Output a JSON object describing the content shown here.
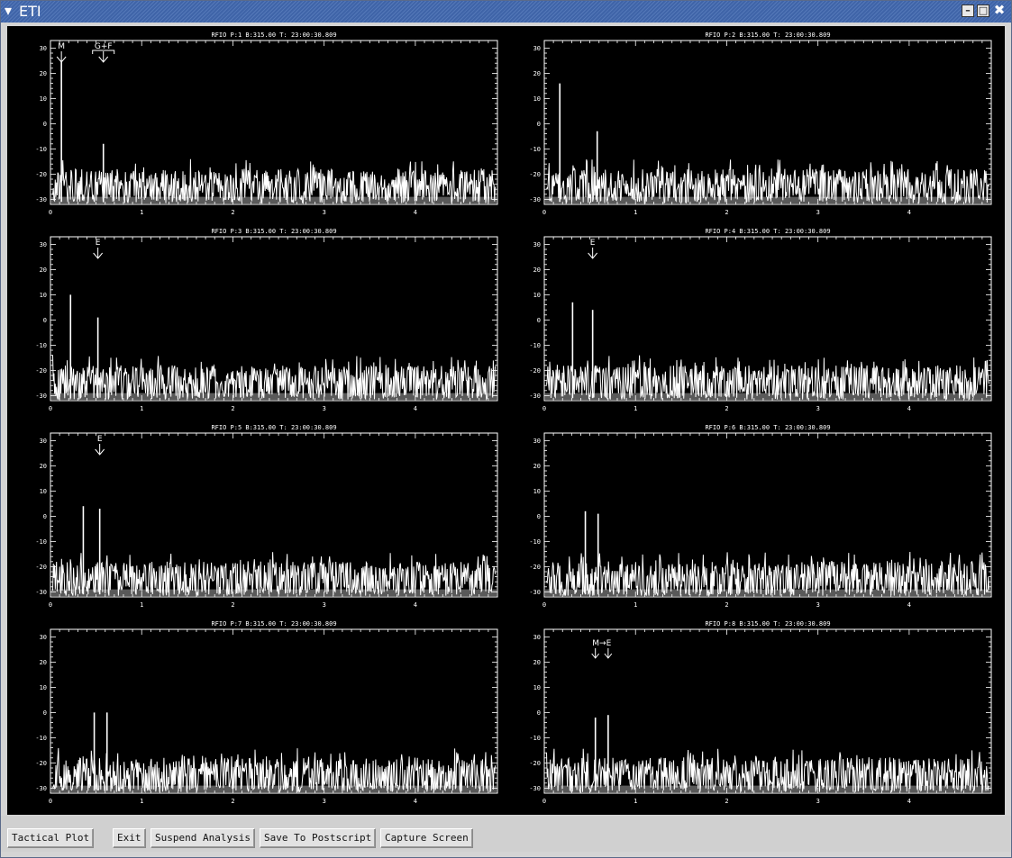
{
  "window": {
    "title": "ETI"
  },
  "buttons": [
    "Tactical Plot",
    "Exit",
    "Suspend Analysis",
    "Save To Postscript",
    "Capture Screen"
  ],
  "colors": {
    "plot_bg": "#000000",
    "trace": "#ffffff",
    "titlebar": "#4a6fb0"
  },
  "chart_data": [
    {
      "type": "line",
      "title": "RFIO P:1 B:315.00 T: 23:00:30.809",
      "xlim": [
        0,
        4.9
      ],
      "ylim": [
        -32,
        33
      ],
      "xticks": [
        "0",
        "1",
        "2",
        "3",
        "4"
      ],
      "yticks": [
        "30",
        "20",
        "10",
        "0",
        "-10",
        "-20",
        "-30"
      ],
      "noise_floor": -22,
      "peaks": [
        {
          "x": 0.12,
          "y": 25
        },
        {
          "x": 0.58,
          "y": -8
        }
      ],
      "markers": [
        {
          "label": "M",
          "x": 0.12
        },
        {
          "label": "G+F",
          "x": 0.58,
          "bracket": true
        }
      ]
    },
    {
      "type": "line",
      "title": "RFIO P:2 B:315.00 T: 23:00:30.809",
      "xlim": [
        0,
        4.9
      ],
      "ylim": [
        -32,
        33
      ],
      "xticks": [
        "0",
        "1",
        "2",
        "3",
        "4"
      ],
      "yticks": [
        "30",
        "20",
        "10",
        "0",
        "-10",
        "-20",
        "-30"
      ],
      "noise_floor": -22,
      "peaks": [
        {
          "x": 0.17,
          "y": 16
        },
        {
          "x": 0.58,
          "y": -3
        }
      ],
      "markers": []
    },
    {
      "type": "line",
      "title": "RFIO P:3 B:315.00 T: 23:00:30.809",
      "xlim": [
        0,
        4.9
      ],
      "ylim": [
        -32,
        33
      ],
      "xticks": [
        "0",
        "1",
        "2",
        "3",
        "4"
      ],
      "yticks": [
        "30",
        "20",
        "10",
        "0",
        "-10",
        "-20",
        "-30"
      ],
      "noise_floor": -22,
      "peaks": [
        {
          "x": 0.22,
          "y": 10
        },
        {
          "x": 0.52,
          "y": 1
        }
      ],
      "markers": [
        {
          "label": "E",
          "x": 0.52
        }
      ]
    },
    {
      "type": "line",
      "title": "RFIO P:4 B:315.00 T: 23:00:30.809",
      "xlim": [
        0,
        4.9
      ],
      "ylim": [
        -32,
        33
      ],
      "xticks": [
        "0",
        "1",
        "2",
        "3",
        "4"
      ],
      "yticks": [
        "30",
        "20",
        "10",
        "0",
        "-10",
        "-20",
        "-30"
      ],
      "noise_floor": -22,
      "peaks": [
        {
          "x": 0.31,
          "y": 7
        },
        {
          "x": 0.53,
          "y": 4
        }
      ],
      "markers": [
        {
          "label": "E",
          "x": 0.53
        }
      ]
    },
    {
      "type": "line",
      "title": "RFIO P:5 B:315.00 T: 23:00:30.809",
      "xlim": [
        0,
        4.9
      ],
      "ylim": [
        -32,
        33
      ],
      "xticks": [
        "0",
        "1",
        "2",
        "3",
        "4"
      ],
      "yticks": [
        "30",
        "20",
        "10",
        "0",
        "-10",
        "-20",
        "-30"
      ],
      "noise_floor": -22,
      "peaks": [
        {
          "x": 0.36,
          "y": 4
        },
        {
          "x": 0.54,
          "y": 3
        }
      ],
      "markers": [
        {
          "label": "E",
          "x": 0.54
        }
      ]
    },
    {
      "type": "line",
      "title": "RFIO P:6 B:315.00 T: 23:00:30.809",
      "xlim": [
        0,
        4.9
      ],
      "ylim": [
        -32,
        33
      ],
      "xticks": [
        "0",
        "1",
        "2",
        "3",
        "4"
      ],
      "yticks": [
        "30",
        "20",
        "10",
        "0",
        "-10",
        "-20",
        "-30"
      ],
      "noise_floor": -22,
      "peaks": [
        {
          "x": 0.45,
          "y": 2
        },
        {
          "x": 0.59,
          "y": 1
        }
      ],
      "markers": []
    },
    {
      "type": "line",
      "title": "RFIO P:7 B:315.00 T: 23:00:30.809",
      "xlim": [
        0,
        4.9
      ],
      "ylim": [
        -32,
        33
      ],
      "xticks": [
        "0",
        "1",
        "2",
        "3",
        "4"
      ],
      "yticks": [
        "30",
        "20",
        "10",
        "0",
        "-10",
        "-20",
        "-30"
      ],
      "noise_floor": -22,
      "peaks": [
        {
          "x": 0.48,
          "y": 0
        },
        {
          "x": 0.62,
          "y": 0
        }
      ],
      "markers": []
    },
    {
      "type": "line",
      "title": "RFIO P:8 B:315.00 T: 23:00:30.809",
      "xlim": [
        0,
        4.9
      ],
      "ylim": [
        -32,
        33
      ],
      "xticks": [
        "0",
        "1",
        "2",
        "3",
        "4"
      ],
      "yticks": [
        "30",
        "20",
        "10",
        "0",
        "-10",
        "-20",
        "-30"
      ],
      "noise_floor": -22,
      "peaks": [
        {
          "x": 0.56,
          "y": -2
        },
        {
          "x": 0.7,
          "y": -1
        }
      ],
      "markers": [
        {
          "label": "M",
          "x": 0.56
        },
        {
          "label": "E",
          "x": 0.7
        }
      ],
      "marker_label": "M→E"
    }
  ]
}
